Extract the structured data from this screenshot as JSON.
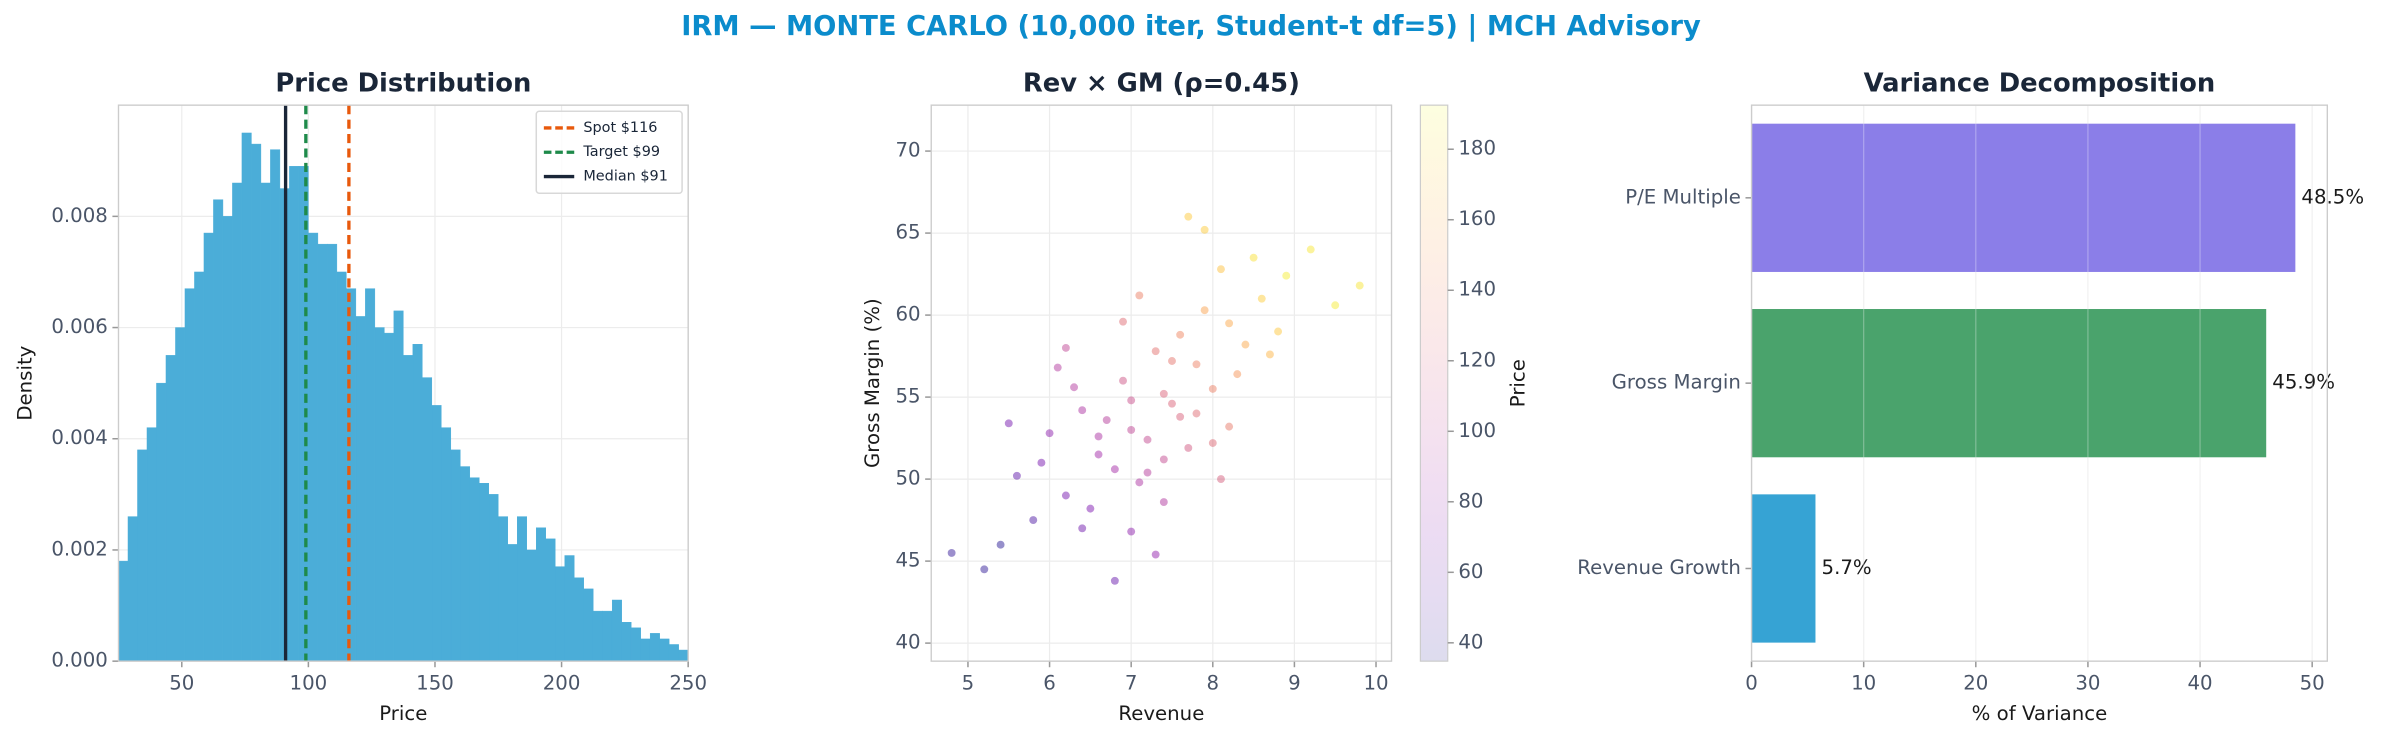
{
  "title": "IRM — MONTE CARLO (10,000 iter, Student-t df=5) | MCH Advisory",
  "chart_data": [
    {
      "type": "histogram",
      "title": "Price Distribution",
      "xlabel": "Price",
      "ylabel": "Density",
      "color": "#4badd8",
      "bins": [
        25,
        28.75,
        32.5,
        36.25,
        40,
        43.75,
        47.5,
        51.25,
        55,
        58.75,
        62.5,
        66.25,
        70,
        73.75,
        77.5,
        81.25,
        85,
        88.75,
        92.5,
        96.25,
        100,
        103.75,
        107.5,
        111.25,
        115,
        118.75,
        122.5,
        126.25,
        130,
        133.75,
        137.5,
        141.25,
        145,
        148.75,
        152.5,
        156.25,
        160,
        163.75,
        167.5,
        171.25,
        175,
        178.75,
        182.5,
        186.25,
        190,
        193.75,
        197.5,
        201.25,
        205,
        208.75,
        212.5,
        216.25,
        220,
        223.75,
        227.5,
        231.25,
        235,
        238.75,
        242.5,
        246.25,
        250
      ],
      "values": [
        0.0018,
        0.0026,
        0.0038,
        0.0042,
        0.005,
        0.0055,
        0.006,
        0.0067,
        0.007,
        0.0077,
        0.0083,
        0.008,
        0.0086,
        0.0095,
        0.0093,
        0.0086,
        0.0092,
        0.0085,
        0.0089,
        0.0089,
        0.0077,
        0.0075,
        0.0075,
        0.007,
        0.0067,
        0.0062,
        0.0067,
        0.006,
        0.0059,
        0.0063,
        0.0055,
        0.0057,
        0.0051,
        0.0046,
        0.0042,
        0.0038,
        0.0035,
        0.0033,
        0.0032,
        0.003,
        0.0026,
        0.0021,
        0.0026,
        0.002,
        0.0024,
        0.0022,
        0.0017,
        0.0019,
        0.0015,
        0.0013,
        0.0009,
        0.0009,
        0.0011,
        0.0007,
        0.0006,
        0.0004,
        0.0005,
        0.0004,
        0.0003,
        0.0002
      ],
      "vlines": [
        {
          "label": "Spot $116",
          "value": 116,
          "color": "#e8590c",
          "style": "dashed"
        },
        {
          "label": "Target $99",
          "value": 99,
          "color": "#1e8a4a",
          "style": "dashed"
        },
        {
          "label": "Median $91",
          "value": 91,
          "color": "#1a2638",
          "style": "solid"
        }
      ],
      "legend": "upper right",
      "xlim": [
        25,
        250
      ],
      "xticks": [
        50,
        100,
        150,
        200,
        250
      ],
      "ylim": [
        0,
        0.01
      ],
      "yticks": [
        {
          "value": 0,
          "label": "0.000"
        },
        0.002,
        0.004,
        0.006,
        0.008
      ],
      "grid": true
    },
    {
      "type": "scatter",
      "title": "Rev × GM (ρ=0.45)",
      "xlabel": "Revenue",
      "ylabel": "Gross Margin (%)",
      "x": [
        7.0,
        7.4,
        6.6,
        7.8,
        8.2,
        6.2,
        7.2,
        8.6,
        5.8,
        6.9,
        7.6,
        8.0,
        6.4,
        7.1,
        7.9,
        8.9,
        5.4,
        6.8,
        7.3,
        7.7,
        8.4,
        6.0,
        6.5,
        7.5,
        8.1,
        8.8,
        5.6,
        7.0,
        7.6,
        6.3,
        7.2,
        8.3,
        9.2,
        6.7,
        7.4,
        8.0,
        5.2,
        6.1,
        7.8,
        8.5,
        6.9,
        7.3,
        7.1,
        9.5,
        6.6,
        7.7,
        8.2,
        5.9,
        6.4,
        7.5,
        4.8,
        7.0,
        8.7,
        6.8,
        7.9,
        9.8,
        6.2,
        7.4,
        8.1,
        5.5
      ],
      "values": [
        53.0,
        55.2,
        51.5,
        57.0,
        59.5,
        49.0,
        52.4,
        61.0,
        47.5,
        56.0,
        53.8,
        55.5,
        54.2,
        49.8,
        60.3,
        62.4,
        46.0,
        50.6,
        57.8,
        51.9,
        58.2,
        52.8,
        48.2,
        54.6,
        62.8,
        59.0,
        50.2,
        46.8,
        58.8,
        55.6,
        50.4,
        56.4,
        64.0,
        53.6,
        48.6,
        52.2,
        44.5,
        56.8,
        54.0,
        63.5,
        59.6,
        45.4,
        61.2,
        60.6,
        52.6,
        66.0,
        53.2,
        51.0,
        47.0,
        57.2,
        45.5,
        54.8,
        57.6,
        43.8,
        65.2,
        61.8,
        58.0,
        51.2,
        50.0,
        53.4
      ],
      "color_values": [
        102,
        121,
        86,
        138,
        158,
        66,
        105,
        174,
        50,
        112,
        120,
        137,
        92,
        92,
        154,
        187,
        38,
        87,
        129,
        115,
        158,
        76,
        70,
        121,
        169,
        171,
        56,
        77,
        140,
        95,
        97,
        148,
        185,
        97,
        94,
        124,
        40,
        95,
        126,
        182,
        126,
        79,
        137,
        186,
        90,
        172,
        133,
        67,
        63,
        131,
        42,
        109,
        163,
        60,
        173,
        184,
        102,
        105,
        118,
        66
      ],
      "colormap": "plasma",
      "colorbar_label": "Price",
      "clim": [
        34.8,
        192.5
      ],
      "cticks": [
        40,
        60,
        80,
        100,
        120,
        140,
        160,
        180
      ],
      "xlim": [
        4.55,
        10.19
      ],
      "xticks": [
        5,
        6,
        7,
        8,
        9,
        10
      ],
      "ylim": [
        38.9,
        72.8
      ],
      "yticks": [
        40,
        45,
        50,
        55,
        60,
        65,
        70
      ],
      "grid": true
    },
    {
      "type": "barh",
      "title": "Variance Decomposition",
      "xlabel": "% of Variance",
      "categories": [
        "P/E Multiple",
        "Gross Margin",
        "Revenue Growth"
      ],
      "values": [
        48.5,
        45.9,
        5.7
      ],
      "value_labels": [
        "48.5%",
        "45.9%",
        "5.7%"
      ],
      "colors": [
        "#8b7ee8",
        "#4aa36c",
        "#36a3d4"
      ],
      "xlim": [
        0,
        51.35
      ],
      "xticks": [
        0,
        10,
        20,
        30,
        40,
        50
      ],
      "grid": true
    }
  ]
}
